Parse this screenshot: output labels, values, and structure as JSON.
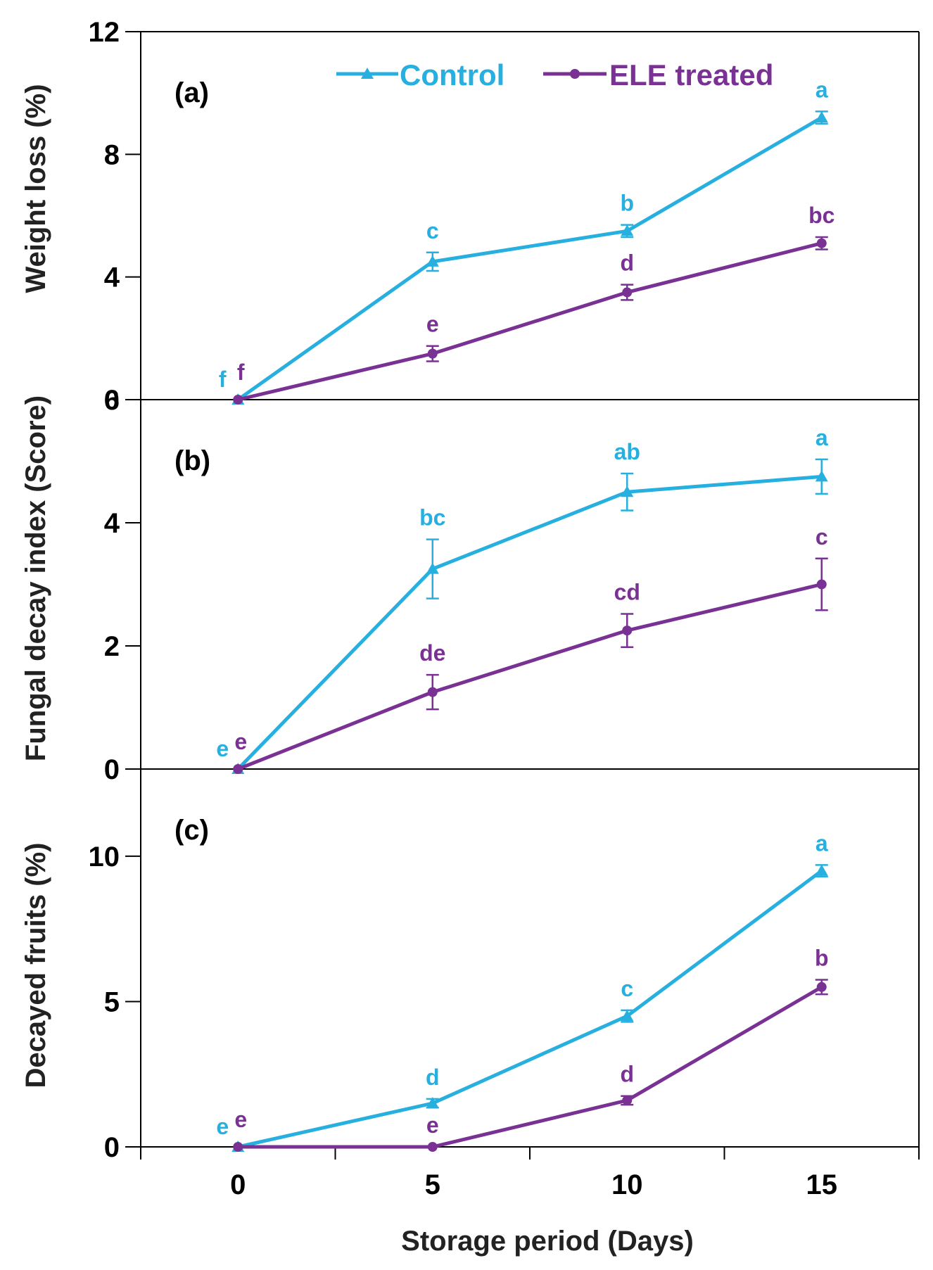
{
  "colors": {
    "control": "#27B0DF",
    "treated": "#7A3194",
    "axis": "#000000"
  },
  "xaxis": {
    "label": "Storage period (Days)",
    "ticks": [
      0,
      5,
      10,
      15
    ],
    "range": [
      -2.5,
      17.5
    ]
  },
  "legend": {
    "entries": [
      "Control",
      "ELE treated"
    ],
    "position": "top-center"
  },
  "chart_data": [
    {
      "type": "line",
      "panel_label": "(a)",
      "ylabel": "Weight loss (%)",
      "ylim": [
        0,
        12
      ],
      "yticks": [
        0,
        4,
        8,
        12
      ],
      "x": [
        0,
        5,
        10,
        15
      ],
      "series": [
        {
          "name": "Control",
          "marker": "triangle",
          "values": [
            0,
            4.5,
            5.5,
            9.2
          ],
          "errors": [
            0,
            0.3,
            0.2,
            0.2
          ],
          "letters": [
            "f",
            "c",
            "b",
            "a"
          ]
        },
        {
          "name": "ELE treated",
          "marker": "circle",
          "values": [
            0,
            1.5,
            3.5,
            5.1
          ],
          "errors": [
            0,
            0.25,
            0.25,
            0.2
          ],
          "letters": [
            "f",
            "e",
            "d",
            "bc"
          ]
        }
      ]
    },
    {
      "type": "line",
      "panel_label": "(b)",
      "ylabel": "Fungal decay index (Score)",
      "ylim": [
        0,
        6
      ],
      "yticks": [
        0,
        2,
        4,
        6
      ],
      "x": [
        0,
        5,
        10,
        15
      ],
      "series": [
        {
          "name": "Control",
          "marker": "triangle",
          "values": [
            0,
            3.25,
            4.5,
            4.75
          ],
          "errors": [
            0,
            0.48,
            0.3,
            0.28
          ],
          "letters": [
            "e",
            "bc",
            "ab",
            "a"
          ]
        },
        {
          "name": "ELE treated",
          "marker": "circle",
          "values": [
            0,
            1.25,
            2.25,
            3.0
          ],
          "errors": [
            0,
            0.28,
            0.27,
            0.42
          ],
          "letters": [
            "e",
            "de",
            "cd",
            "c"
          ]
        }
      ]
    },
    {
      "type": "line",
      "panel_label": "(c)",
      "ylabel": "Decayed fruits (%)",
      "ylim": [
        0,
        13
      ],
      "yticks": [
        0,
        5,
        10
      ],
      "x": [
        0,
        5,
        10,
        15
      ],
      "series": [
        {
          "name": "Control",
          "marker": "triangle",
          "values": [
            0,
            1.5,
            4.5,
            9.5
          ],
          "errors": [
            0,
            0.15,
            0.2,
            0.2
          ],
          "letters": [
            "e",
            "d",
            "c",
            "a"
          ]
        },
        {
          "name": "ELE treated",
          "marker": "circle",
          "values": [
            0,
            0,
            1.6,
            5.5
          ],
          "errors": [
            0,
            0,
            0.15,
            0.25
          ],
          "letters": [
            "e",
            "e",
            "d",
            "b"
          ]
        }
      ]
    }
  ]
}
